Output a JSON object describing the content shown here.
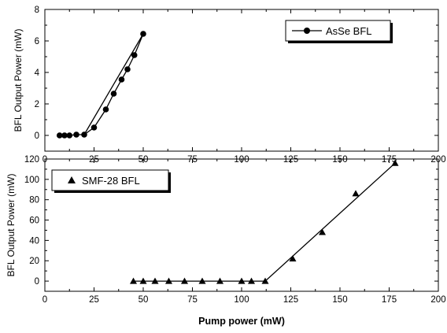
{
  "chart_data": [
    {
      "type": "line",
      "ylabel": "BFL Output Power (mW)",
      "xlim": [
        0,
        200
      ],
      "ylim": [
        -1,
        8
      ],
      "xticks": [
        0,
        25,
        50,
        75,
        100,
        125,
        150,
        175,
        200
      ],
      "yticks": [
        0,
        2,
        4,
        6,
        8
      ],
      "legend": "top-right",
      "series": [
        {
          "name": "AsSe BFL",
          "marker": "circle",
          "x": [
            7.5,
            10,
            12.5,
            16,
            20,
            25,
            31,
            35,
            39,
            42,
            45.5,
            50
          ],
          "y": [
            0,
            0,
            0,
            0.05,
            0.05,
            0.5,
            1.65,
            2.65,
            3.55,
            4.2,
            5.1,
            6.45
          ]
        }
      ],
      "fit_line": {
        "x": [
          20,
          50
        ],
        "y": [
          0.05,
          6.45
        ]
      }
    },
    {
      "type": "scatter",
      "ylabel": "BFL Output Power (mW)",
      "xlabel": "Pump power (mW)",
      "xlim": [
        0,
        200
      ],
      "ylim": [
        -10,
        120
      ],
      "xticks": [
        0,
        25,
        50,
        75,
        100,
        125,
        150,
        175,
        200
      ],
      "yticks": [
        0,
        20,
        40,
        60,
        80,
        100,
        120
      ],
      "legend": "top-left",
      "series": [
        {
          "name": "SMF-28 BFL",
          "marker": "triangle",
          "x": [
            45,
            50,
            56,
            63,
            71,
            80,
            89,
            100,
            105,
            112,
            126,
            141,
            158,
            178
          ],
          "y": [
            0,
            0,
            0,
            0,
            0,
            0,
            0,
            0,
            0,
            0,
            22,
            48,
            86,
            116
          ]
        }
      ],
      "fit_line": {
        "x": [
          45,
          112,
          178
        ],
        "y": [
          0,
          0,
          116
        ]
      }
    }
  ]
}
